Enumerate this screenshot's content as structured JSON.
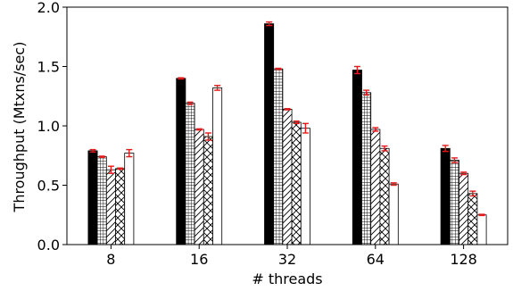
{
  "chart_data": {
    "type": "bar",
    "xlabel": "# threads",
    "ylabel": "Throughput (Mtxns/sec)",
    "ylim": [
      0,
      2.0
    ],
    "yticks": [
      "0.0",
      "0.5",
      "1.0",
      "1.5",
      "2.0"
    ],
    "categories": [
      "8",
      "16",
      "32",
      "64",
      "128"
    ],
    "grid": false,
    "legend": "none",
    "error_bar_color": "#e41a1c",
    "series": [
      {
        "fill": "solid-black",
        "values": [
          0.79,
          1.4,
          1.86,
          1.47,
          0.81
        ],
        "errors": [
          0.01,
          0.005,
          0.015,
          0.03,
          0.025
        ]
      },
      {
        "fill": "grid-hatch",
        "values": [
          0.74,
          1.19,
          1.48,
          1.28,
          0.71
        ],
        "errors": [
          0.005,
          0.01,
          0.005,
          0.02,
          0.02
        ]
      },
      {
        "fill": "diagonal-hatch",
        "values": [
          0.63,
          0.97,
          1.14,
          0.97,
          0.6
        ],
        "errors": [
          0.03,
          0.005,
          0.005,
          0.015,
          0.01
        ]
      },
      {
        "fill": "cross-hatch",
        "values": [
          0.64,
          0.91,
          1.03,
          0.81,
          0.43
        ],
        "errors": [
          0.005,
          0.03,
          0.01,
          0.02,
          0.02
        ]
      },
      {
        "fill": "white",
        "values": [
          0.77,
          1.32,
          0.98,
          0.51,
          0.25
        ],
        "errors": [
          0.03,
          0.02,
          0.04,
          0.01,
          0.005
        ]
      }
    ]
  }
}
